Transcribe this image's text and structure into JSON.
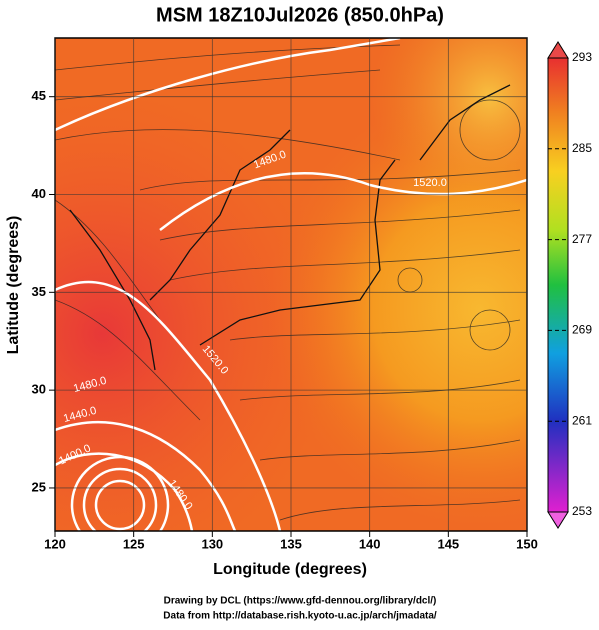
{
  "title": "MSM 18Z10Jul2026 (850.0hPa)",
  "x_axis": {
    "label": "Longitude (degrees)",
    "lim": [
      120,
      150
    ],
    "ticks": [
      120,
      125,
      130,
      135,
      140,
      145,
      150
    ]
  },
  "y_axis": {
    "label": "Latitude  (degrees)",
    "lim": [
      22.8,
      48
    ],
    "ticks": [
      25,
      30,
      35,
      40,
      45
    ]
  },
  "colorbar": {
    "lim": [
      253,
      293
    ],
    "ticks": [
      253,
      261,
      269,
      277,
      285,
      293
    ]
  },
  "contour_labels": [
    "1480.0",
    "1520.0",
    "1520.0",
    "1480.0",
    "1440.0",
    "1400.0",
    "1480.0"
  ],
  "footer": [
    "Drawing by DCL (https://www.gfd-dennou.org/library/dcl/)",
    "Data from http://database.rish.kyoto-u.ac.jp/arch/jmadata/"
  ]
}
